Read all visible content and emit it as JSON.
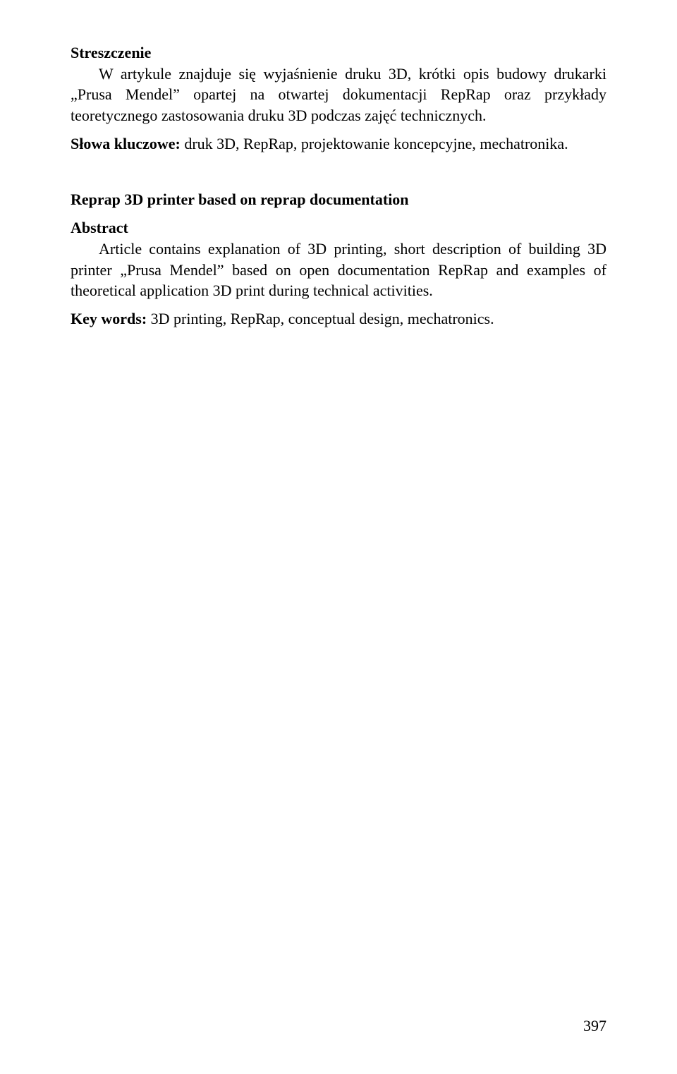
{
  "streszczenie": {
    "heading": "Streszczenie",
    "body": "W artykule znajduje się wyjaśnienie druku 3D, krótki opis budowy drukarki „Prusa Mendel” opartej na otwartej dokumentacji RepRap oraz przykłady teoretycznego zastosowania druku 3D podczas zajęć technicznych."
  },
  "slowa_kluczowe": {
    "label": "Słowa kluczowe:",
    "text": " druk 3D, RepRap, projektowanie koncepcyjne, mechatronika."
  },
  "english_title": "Reprap 3D printer based on reprap documentation",
  "abstract": {
    "heading": "Abstract",
    "body": "Article contains explanation of 3D printing, short description of building 3D printer „Prusa Mendel” based on open documentation RepRap and examples of theoretical application 3D print during technical activities."
  },
  "key_words": {
    "label": "Key words:",
    "text": " 3D printing, RepRap, conceptual design, mechatronics."
  },
  "page_number": "397"
}
